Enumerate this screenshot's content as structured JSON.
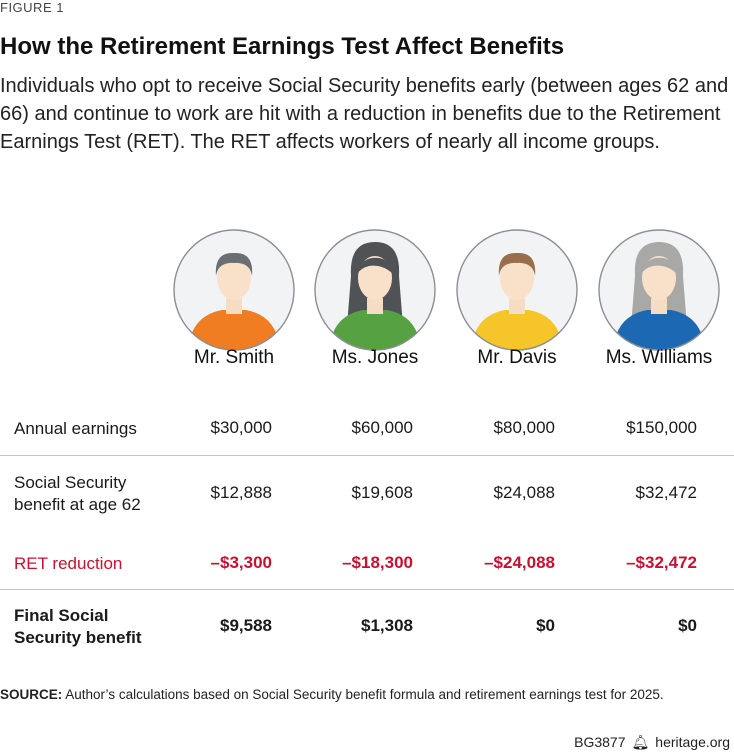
{
  "figure_label": "FIGURE 1",
  "title": "How the Retirement Earnings Test Affect Benefits",
  "description": "Individuals who opt to receive Social Security benefits early (between ages 62 and 66) and continue to work are hit with a reduction in benefits due to the Retirement Earnings Test (RET). The RET affects workers of nearly all income groups.",
  "colors": {
    "red": "#c41230",
    "rule": "#c4c4c4"
  },
  "people": [
    {
      "name": "Mr. Smith",
      "icon": "man-short-hair-orange-shirt-icon",
      "shirt": "#f07d22",
      "hair": "#6b6e72"
    },
    {
      "name": "Ms. Jones",
      "icon": "woman-long-hair-green-shirt-icon",
      "shirt": "#56a142",
      "hair": "#505355"
    },
    {
      "name": "Mr. Davis",
      "icon": "man-short-hair-yellow-shirt-icon",
      "shirt": "#f5c52a",
      "hair": "#9a6d4d"
    },
    {
      "name": "Ms. Williams",
      "icon": "woman-long-hair-blue-shirt-icon",
      "shirt": "#1d68b3",
      "hair": "#a8a8a6"
    }
  ],
  "chart_data": {
    "type": "table",
    "columns": [
      "Mr. Smith",
      "Ms. Jones",
      "Mr. Davis",
      "Ms. Williams"
    ],
    "rows": [
      {
        "label_lines": [
          "Annual earnings"
        ],
        "values": [
          "$30,000",
          "$60,000",
          "$80,000",
          "$150,000"
        ]
      },
      {
        "label_lines": [
          "Social Security",
          "benefit at age 62"
        ],
        "values": [
          "$12,888",
          "$19,608",
          "$24,088",
          "$32,472"
        ]
      },
      {
        "label_lines": [
          "RET reduction"
        ],
        "values": [
          "–$3,300",
          "–$18,300",
          "–$24,088",
          "–$32,472"
        ],
        "style": "red"
      },
      {
        "label_lines": [
          "Final Social",
          "Security benefit"
        ],
        "values": [
          "$9,588",
          "$1,308",
          "$0",
          "$0"
        ],
        "style": "bold"
      }
    ]
  },
  "source": {
    "label": "SOURCE:",
    "text": "Author’s calculations based on Social Security benefit formula and retirement earnings test for 2025."
  },
  "footer": {
    "code": "BG3877",
    "site": "heritage.org"
  }
}
